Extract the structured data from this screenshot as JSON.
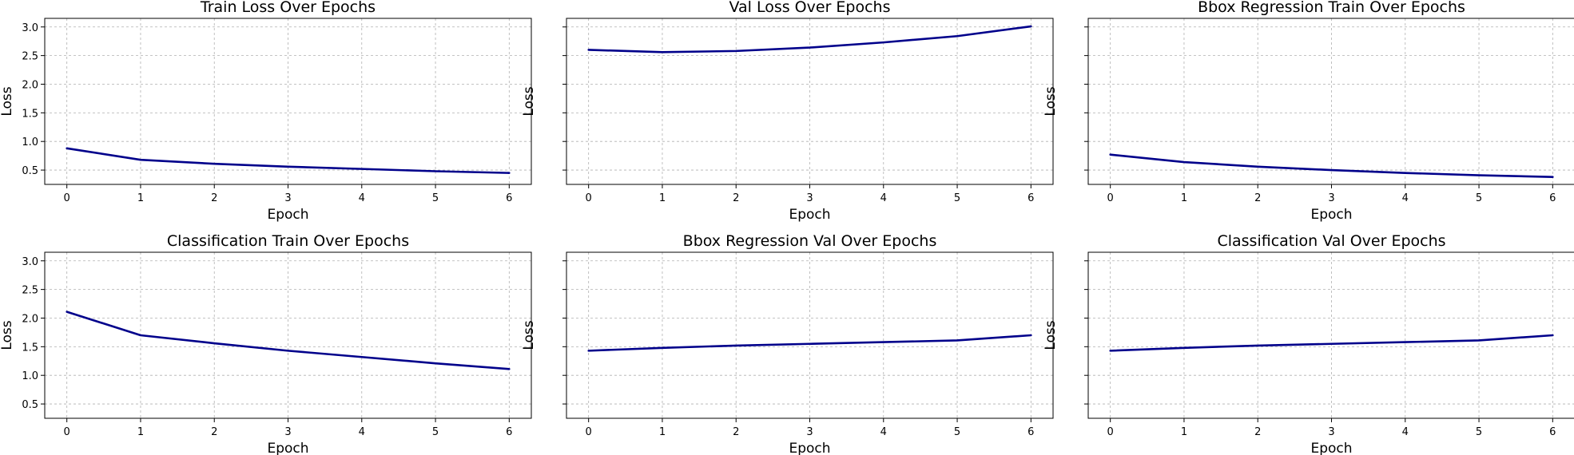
{
  "chart_data": [
    {
      "type": "line",
      "title": "Train Loss Over Epochs",
      "xlabel": "Epoch",
      "ylabel": "Loss",
      "x": [
        0,
        1,
        2,
        3,
        4,
        5,
        6
      ],
      "xlim": [
        -0.3,
        6.3
      ],
      "ylim": [
        0.25,
        3.15
      ],
      "xticks": [
        0,
        1,
        2,
        3,
        4,
        5,
        6
      ],
      "yticks": [
        0.5,
        1.0,
        1.5,
        2.0,
        2.5,
        3.0
      ],
      "show_yticklabels": true,
      "grid": true,
      "series": [
        {
          "values": [
            0.88,
            0.68,
            0.61,
            0.56,
            0.52,
            0.48,
            0.45
          ]
        }
      ]
    },
    {
      "type": "line",
      "title": "Val Loss Over Epochs",
      "xlabel": "Epoch",
      "ylabel": "Loss",
      "x": [
        0,
        1,
        2,
        3,
        4,
        5,
        6
      ],
      "xlim": [
        -0.3,
        6.3
      ],
      "ylim": [
        0.25,
        3.15
      ],
      "xticks": [
        0,
        1,
        2,
        3,
        4,
        5,
        6
      ],
      "yticks": [
        0.5,
        1.0,
        1.5,
        2.0,
        2.5,
        3.0
      ],
      "show_yticklabels": false,
      "grid": true,
      "series": [
        {
          "values": [
            2.6,
            2.56,
            2.58,
            2.64,
            2.73,
            2.84,
            3.01
          ]
        }
      ]
    },
    {
      "type": "line",
      "title": "Bbox Regression Train Over Epochs",
      "xlabel": "Epoch",
      "ylabel": "Loss",
      "x": [
        0,
        1,
        2,
        3,
        4,
        5,
        6
      ],
      "xlim": [
        -0.3,
        6.3
      ],
      "ylim": [
        0.25,
        3.15
      ],
      "xticks": [
        0,
        1,
        2,
        3,
        4,
        5,
        6
      ],
      "yticks": [
        0.5,
        1.0,
        1.5,
        2.0,
        2.5,
        3.0
      ],
      "show_yticklabels": false,
      "grid": true,
      "series": [
        {
          "values": [
            0.77,
            0.64,
            0.56,
            0.5,
            0.45,
            0.41,
            0.38
          ]
        }
      ]
    },
    {
      "type": "line",
      "title": "Classification Train Over Epochs",
      "xlabel": "Epoch",
      "ylabel": "Loss",
      "x": [
        0,
        1,
        2,
        3,
        4,
        5,
        6
      ],
      "xlim": [
        -0.3,
        6.3
      ],
      "ylim": [
        0.25,
        3.15
      ],
      "xticks": [
        0,
        1,
        2,
        3,
        4,
        5,
        6
      ],
      "yticks": [
        0.5,
        1.0,
        1.5,
        2.0,
        2.5,
        3.0
      ],
      "show_yticklabels": true,
      "grid": true,
      "series": [
        {
          "values": [
            2.11,
            1.7,
            1.56,
            1.43,
            1.32,
            1.21,
            1.11
          ]
        }
      ]
    },
    {
      "type": "line",
      "title": "Bbox Regression Val Over Epochs",
      "xlabel": "Epoch",
      "ylabel": "Loss",
      "x": [
        0,
        1,
        2,
        3,
        4,
        5,
        6
      ],
      "xlim": [
        -0.3,
        6.3
      ],
      "ylim": [
        0.25,
        3.15
      ],
      "xticks": [
        0,
        1,
        2,
        3,
        4,
        5,
        6
      ],
      "yticks": [
        0.5,
        1.0,
        1.5,
        2.0,
        2.5,
        3.0
      ],
      "show_yticklabels": false,
      "grid": true,
      "series": [
        {
          "values": [
            1.43,
            1.48,
            1.52,
            1.55,
            1.58,
            1.61,
            1.7
          ]
        }
      ]
    },
    {
      "type": "line",
      "title": "Classification Val Over Epochs",
      "xlabel": "Epoch",
      "ylabel": "Loss",
      "x": [
        0,
        1,
        2,
        3,
        4,
        5,
        6
      ],
      "xlim": [
        -0.3,
        6.3
      ],
      "ylim": [
        0.25,
        3.15
      ],
      "xticks": [
        0,
        1,
        2,
        3,
        4,
        5,
        6
      ],
      "yticks": [
        0.5,
        1.0,
        1.5,
        2.0,
        2.5,
        3.0
      ],
      "show_yticklabels": false,
      "grid": true,
      "series": [
        {
          "values": [
            1.43,
            1.48,
            1.52,
            1.55,
            1.58,
            1.61,
            1.7
          ]
        }
      ]
    }
  ],
  "colors": {
    "series": "#00008b",
    "grid": "#b0b0b0",
    "frame": "#000000"
  }
}
